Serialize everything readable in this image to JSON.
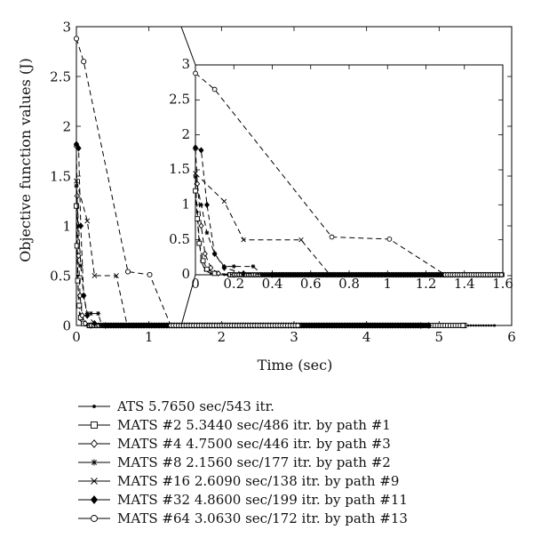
{
  "chart_data": [
    {
      "type": "line",
      "xlabel": "Time (sec)",
      "ylabel": "Objective function values (J)",
      "xlim": [
        0,
        6
      ],
      "ylim": [
        0,
        3
      ],
      "xticks": [
        0,
        1,
        2,
        3,
        4,
        5,
        6
      ],
      "yticks": [
        0,
        0.5,
        1,
        1.5,
        2,
        2.5,
        3
      ],
      "xtick_labels": [
        "0",
        "1",
        "2",
        "3",
        "4",
        "5",
        "6"
      ],
      "ytick_labels": [
        "0",
        "0.5",
        "1",
        "1.5",
        "2",
        "2.5",
        "3"
      ],
      "series": [
        {
          "name": "ATS 5.7650 sec/543 itr.",
          "marker": "dot",
          "end_x": 5.765,
          "x": [
            0,
            0.01,
            0.02,
            0.03,
            0.05,
            0.08,
            0.15,
            5.765
          ],
          "y": [
            1.3,
            0.9,
            0.5,
            0.2,
            0.06,
            0.02,
            0,
            0
          ]
        },
        {
          "name": "MATS #2 5.3440 sec/486 itr. by path #1",
          "marker": "square",
          "end_x": 5.344,
          "x": [
            0,
            0.01,
            0.02,
            0.04,
            0.06,
            0.1,
            0.18,
            5.344
          ],
          "y": [
            1.2,
            0.8,
            0.45,
            0.2,
            0.08,
            0.02,
            0,
            0
          ]
        },
        {
          "name": "MATS #4 4.7500 sec/446 itr. by path #3",
          "marker": "diamond",
          "end_x": 4.75,
          "x": [
            0,
            0.01,
            0.03,
            0.05,
            0.08,
            0.12,
            0.2,
            4.75
          ],
          "y": [
            1.8,
            1.3,
            0.7,
            0.3,
            0.1,
            0.02,
            0,
            0
          ]
        },
        {
          "name": "MATS #8 2.1560 sec/177 itr. by path #2",
          "marker": "star",
          "end_x": 2.156,
          "x": [
            0,
            0.03,
            0.06,
            0.1,
            0.15,
            0.2,
            0.3,
            0.35,
            2.156
          ],
          "y": [
            1.4,
            1.0,
            0.6,
            0.3,
            0.12,
            0.12,
            0.12,
            0,
            0
          ]
        },
        {
          "name": "MATS #16 2.6090 sec/138 itr. by path #9",
          "marker": "cross",
          "end_x": 2.609,
          "x": [
            0,
            0.15,
            0.25,
            0.55,
            0.7,
            2.609
          ],
          "y": [
            1.45,
            1.05,
            0.5,
            0.5,
            0,
            0
          ]
        },
        {
          "name": "MATS #32 4.8600 sec/199 itr. by path #11",
          "marker": "filled-diamond",
          "end_x": 4.86,
          "x": [
            0,
            0.03,
            0.06,
            0.1,
            0.15,
            0.25,
            0.4,
            4.86
          ],
          "y": [
            1.82,
            1.78,
            1.0,
            0.3,
            0.1,
            0.02,
            0,
            0
          ]
        },
        {
          "name": "MATS #64 3.0630 sec/172 itr. by path #13",
          "marker": "circle",
          "end_x": 3.063,
          "x": [
            0,
            0.1,
            0.71,
            1.01,
            1.3,
            3.063
          ],
          "y": [
            2.88,
            2.65,
            0.54,
            0.51,
            0,
            0
          ]
        }
      ]
    },
    {
      "type": "line",
      "role": "inset",
      "xlim": [
        0,
        1.6
      ],
      "ylim": [
        0,
        3
      ],
      "xticks": [
        0,
        0.2,
        0.4,
        0.6,
        0.8,
        1,
        1.2,
        1.4,
        1.6
      ],
      "yticks": [
        0,
        0.5,
        1,
        1.5,
        2,
        2.5,
        3
      ],
      "xtick_labels": [
        "0",
        "0.2",
        "0.4",
        "0.6",
        "0.8",
        "1",
        "1.2",
        "1.4",
        "1.6"
      ],
      "ytick_labels": [
        "0",
        "0.5",
        "1",
        "1.5",
        "2",
        "2.5",
        "3"
      ]
    }
  ],
  "legend": {
    "entries": [
      "ATS 5.7650 sec/543 itr.",
      "MATS #2 5.3440 sec/486 itr. by path #1",
      "MATS #4 4.7500 sec/446 itr. by path #3",
      "MATS #8 2.1560 sec/177 itr. by path #2",
      "MATS #16 2.6090 sec/138 itr. by path #9",
      "MATS #32 4.8600 sec/199 itr. by path #11",
      "MATS #64 3.0630 sec/172 itr. by path #13"
    ]
  }
}
